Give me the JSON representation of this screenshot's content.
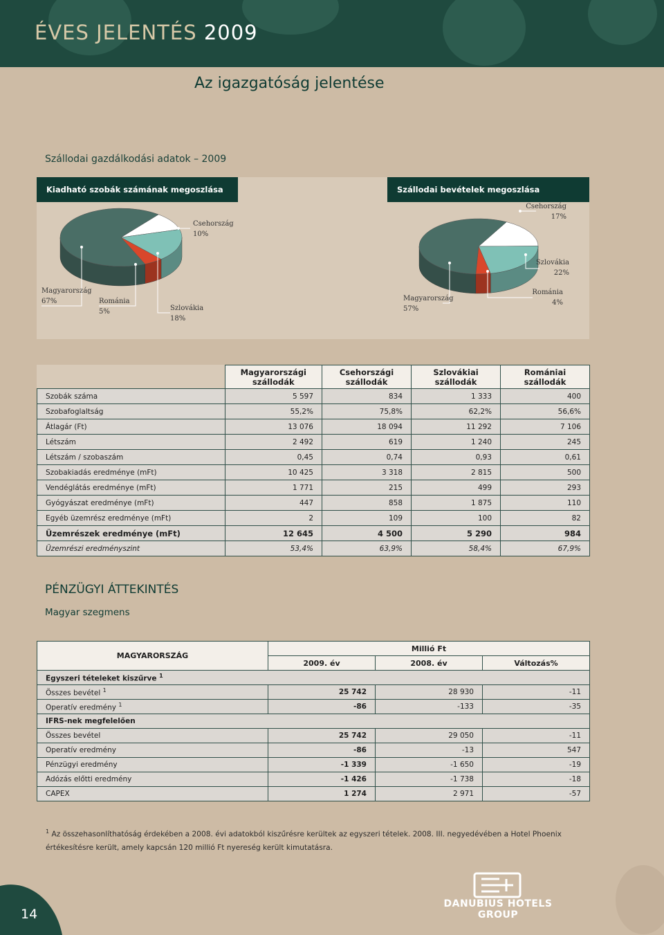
{
  "header": {
    "title": "ÉVES JELENTÉS",
    "year": "2009",
    "subtitle": "Az igazgatóság jelentése"
  },
  "section_title": "Szállodai gazdálkodási adatok – 2009",
  "chart_data": [
    {
      "type": "pie",
      "title": "Kiadható szobák számának megoszlása",
      "categories": [
        "Magyarország",
        "Románia",
        "Szlovákia",
        "Csehország"
      ],
      "values": [
        67,
        5,
        18,
        10
      ],
      "value_labels": [
        "67%",
        "5%",
        "18%",
        "10%"
      ],
      "colors": [
        "#4a6e66",
        "#d9472b",
        "#7fc1b6",
        "#ffffff"
      ]
    },
    {
      "type": "pie",
      "title": "Szállodai bevételek megoszlása",
      "categories": [
        "Magyarország",
        "Románia",
        "Szlovákia",
        "Csehország"
      ],
      "values": [
        57,
        4,
        22,
        17
      ],
      "value_labels": [
        "57%",
        "4%",
        "22%",
        "17%"
      ],
      "colors": [
        "#4a6e66",
        "#d9472b",
        "#7fc1b6",
        "#ffffff"
      ]
    }
  ],
  "hotel_table": {
    "columns": [
      "Magyarországi szállodák",
      "Csehországi szállodák",
      "Szlovákiai szállodák",
      "Romániai szállodák"
    ],
    "rows": [
      {
        "label": "Szobák száma",
        "values": [
          "5 597",
          "834",
          "1 333",
          "400"
        ]
      },
      {
        "label": "Szobafoglaltság",
        "values": [
          "55,2%",
          "75,8%",
          "62,2%",
          "56,6%"
        ]
      },
      {
        "label": "Átlagár (Ft)",
        "values": [
          "13 076",
          "18 094",
          "11 292",
          "7 106"
        ]
      },
      {
        "label": "Létszám",
        "values": [
          "2 492",
          "619",
          "1 240",
          "245"
        ]
      },
      {
        "label": "Létszám / szobaszám",
        "values": [
          "0,45",
          "0,74",
          "0,93",
          "0,61"
        ]
      },
      {
        "label": "Szobakiadás eredménye (mFt)",
        "values": [
          "10 425",
          "3 318",
          "2 815",
          "500"
        ]
      },
      {
        "label": "Vendéglátás eredménye (mFt)",
        "values": [
          "1 771",
          "215",
          "499",
          "293"
        ]
      },
      {
        "label": "Gyógyászat eredménye (mFt)",
        "values": [
          "447",
          "858",
          "1 875",
          "110"
        ]
      },
      {
        "label": "Egyéb üzemrész eredménye (mFt)",
        "values": [
          "2",
          "109",
          "100",
          "82"
        ]
      },
      {
        "label": "Üzemrészek eredménye (mFt)",
        "values": [
          "12 645",
          "4 500",
          "5 290",
          "984"
        ]
      },
      {
        "label": "Üzemrészi eredményszint",
        "values": [
          "53,4%",
          "63,9%",
          "58,4%",
          "67,9%"
        ]
      }
    ]
  },
  "finance": {
    "title": "PÉNZÜGYI ÁTTEKINTÉS",
    "subtitle": "Magyar szegmens"
  },
  "fin_table": {
    "corner": "MAGYARORSZÁG",
    "unit": "Millió Ft",
    "columns": [
      "2009. év",
      "2008. év",
      "Változás%"
    ],
    "sections": [
      {
        "title": "Egyszeri tételeket kiszűrve",
        "note": "1",
        "rows": [
          {
            "label": "Összes bevétel",
            "note": "1",
            "values": [
              "25 742",
              "28 930",
              "-11"
            ]
          },
          {
            "label": "Operatív eredmény",
            "note": "1",
            "values": [
              "-86",
              "-133",
              "-35"
            ]
          }
        ]
      },
      {
        "title": "IFRS-nek megfelelően",
        "rows": [
          {
            "label": "Összes bevétel",
            "values": [
              "25 742",
              "29 050",
              "-11"
            ]
          },
          {
            "label": "Operatív eredmény",
            "values": [
              "-86",
              "-13",
              "547"
            ]
          },
          {
            "label": "Pénzügyi eredmény",
            "values": [
              "-1 339",
              "-1 650",
              "-19"
            ]
          },
          {
            "label": "Adózás előtti eredmény",
            "values": [
              "-1 426",
              "-1 738",
              "-18"
            ]
          },
          {
            "label": "CAPEX",
            "values": [
              "1 274",
              "2 971",
              "-57"
            ]
          }
        ]
      }
    ]
  },
  "footnote": {
    "mark": "1",
    "text": "Az összehasonlíthatóság érdekében a 2008. évi adatokból kiszűrésre kerültek az egyszeri tételek. 2008. III. negyedévében a Hotel Phoenix értékesítésre került, amely kapcsán 120 millió Ft nyereség került kimutatásra."
  },
  "page_number": "14",
  "logo": {
    "line1": "DANUBIUS HOTELS",
    "line2": "GROUP"
  }
}
